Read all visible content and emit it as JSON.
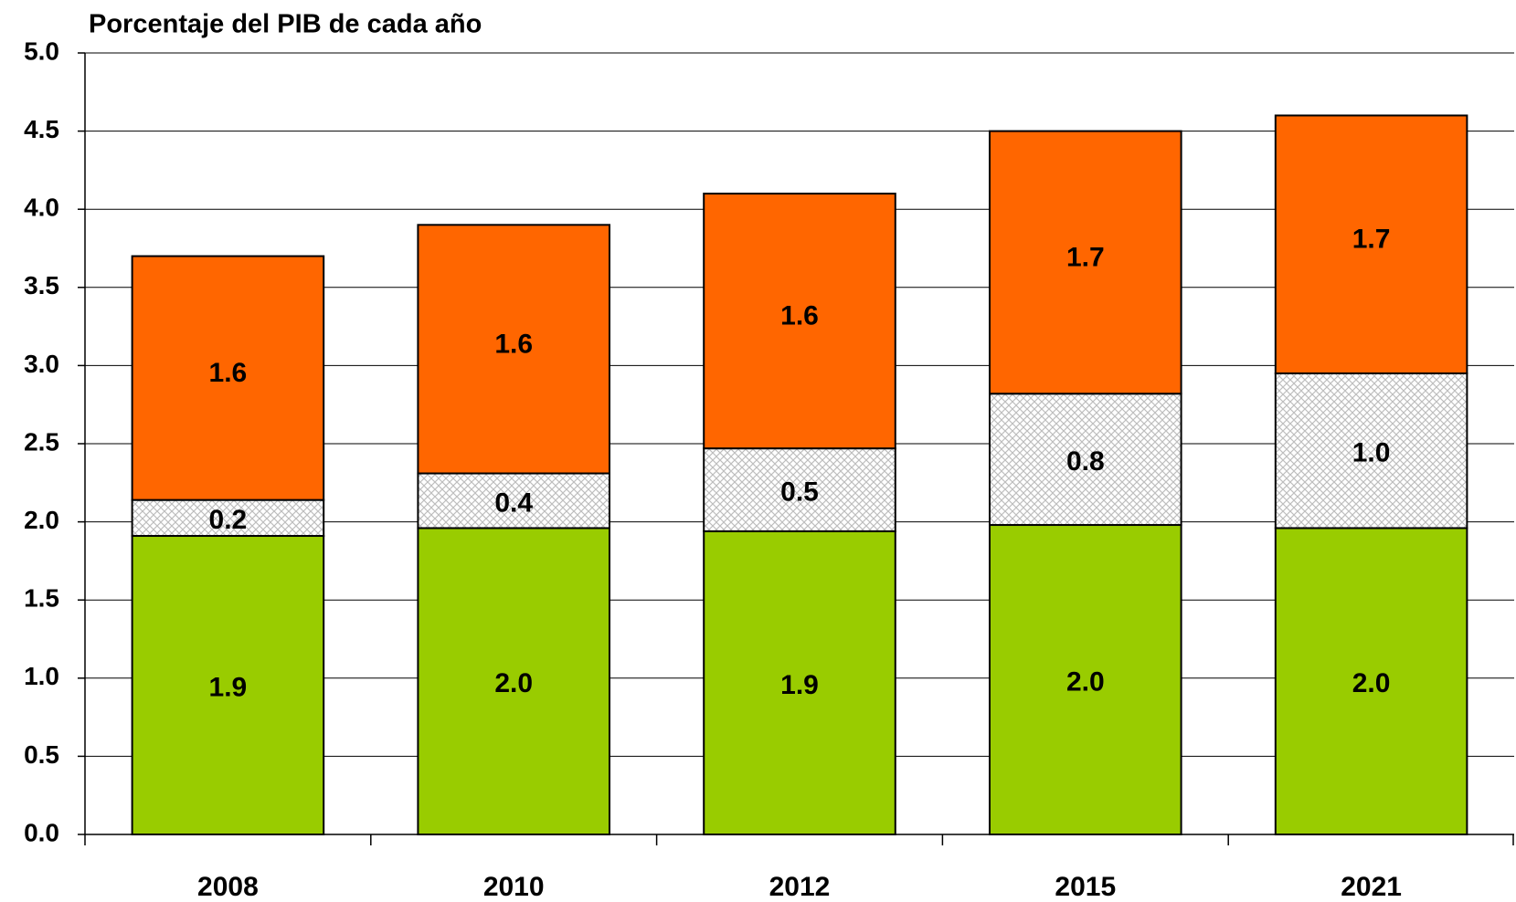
{
  "chart_data": {
    "type": "stacked_bar",
    "title": "Porcentaje del PIB de cada año",
    "categories": [
      "2008",
      "2010",
      "2012",
      "2015",
      "2021"
    ],
    "series": [
      {
        "color": "#99cc00",
        "values": [
          1.91,
          1.96,
          1.94,
          1.98,
          1.96
        ],
        "value_labels": [
          "1.9",
          "2.0",
          "1.9",
          "2.0",
          "2.0"
        ]
      },
      {
        "color": "#d9d9d9",
        "pattern": true,
        "values": [
          0.23,
          0.35,
          0.53,
          0.84,
          0.99
        ],
        "value_labels": [
          "0.2",
          "0.4",
          "0.5",
          "0.8",
          "1.0"
        ]
      },
      {
        "color": "#ff6600",
        "values": [
          1.56,
          1.59,
          1.63,
          1.68,
          1.65
        ],
        "value_labels": [
          "1.6",
          "1.6",
          "1.6",
          "1.7",
          "1.7"
        ]
      }
    ],
    "ylim": [
      0,
      5
    ],
    "yticks": [
      {
        "value": 0,
        "label": "0.0"
      },
      0.5,
      {
        "value": 1,
        "label": "1.0"
      },
      1.5,
      {
        "value": 2,
        "label": "2.0"
      },
      2.5,
      {
        "value": 3,
        "label": "3.0"
      },
      3.5,
      {
        "value": 4,
        "label": "4.0"
      },
      4.5,
      {
        "value": 5,
        "label": "5.0"
      }
    ],
    "grid": true
  }
}
